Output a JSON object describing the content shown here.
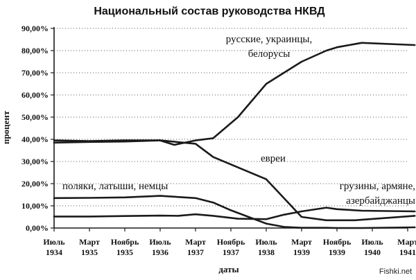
{
  "chart_data": {
    "type": "line",
    "title": "Национальный состав руководства НКВД",
    "xlabel": "даты",
    "ylabel": "процент",
    "ylim": [
      0,
      90
    ],
    "ytick_step": 10,
    "ytick_labels": [
      "0,00%",
      "10,00%",
      "20,00%",
      "30,00%",
      "40,00%",
      "50,00%",
      "60,00%",
      "70,00%",
      "80,00%",
      "90,00%"
    ],
    "grid": "dotted",
    "categories": [
      [
        "Июль",
        "1934"
      ],
      [
        "Март",
        "1935"
      ],
      [
        "Ноябрь",
        "1935"
      ],
      [
        "Июль",
        "1936"
      ],
      [
        "Март",
        "1937"
      ],
      [
        "Ноябрь",
        "1937"
      ],
      [
        "Июль",
        "1938"
      ],
      [
        "Март",
        "1939"
      ],
      [
        "Ноябрь",
        "1939"
      ],
      [
        "Июль",
        "1940"
      ],
      [
        "Март",
        "1941"
      ]
    ],
    "series": [
      {
        "name": "русские, украинцы,\nбелорусы",
        "x": [
          0,
          1,
          2,
          3,
          3.4,
          4,
          4.5,
          5.2,
          6,
          7,
          7.7,
          8,
          8.7,
          10.2
        ],
        "values": [
          38.5,
          38.8,
          39,
          39.5,
          37.5,
          39.5,
          40.5,
          50,
          65,
          75,
          80,
          81.5,
          83.5,
          82.5
        ]
      },
      {
        "name": "евреи",
        "x": [
          0,
          1,
          2,
          3,
          4,
          4.5,
          6,
          7,
          7.7,
          8.5,
          10.2
        ],
        "values": [
          39.5,
          39.2,
          39.5,
          39.5,
          38,
          32,
          22,
          5,
          3.5,
          3.5,
          5.5
        ]
      },
      {
        "name": "поляки, латыши, немцы",
        "x": [
          0,
          1,
          2,
          3,
          4,
          4.5,
          5,
          5.5,
          6,
          6.5,
          7,
          7.7,
          8,
          8.7,
          10.2
        ],
        "values": [
          13.5,
          13.6,
          13.8,
          14.5,
          13.5,
          11.5,
          8,
          5,
          2,
          0.5,
          0.1,
          0.1,
          0,
          0,
          0.3
        ]
      },
      {
        "name": "грузины, армяне,\nазербайджанцы",
        "x": [
          0,
          1,
          2,
          3,
          3.5,
          4,
          4.5,
          5.2,
          6,
          6.5,
          7,
          7.7,
          8,
          8.7,
          10.2
        ],
        "values": [
          5.2,
          5.2,
          5.4,
          5.6,
          5.5,
          6.2,
          5.5,
          4.2,
          4,
          6,
          7.5,
          9.2,
          8.5,
          7.8,
          7.5
        ]
      }
    ],
    "watermark": "Fishki.net"
  }
}
